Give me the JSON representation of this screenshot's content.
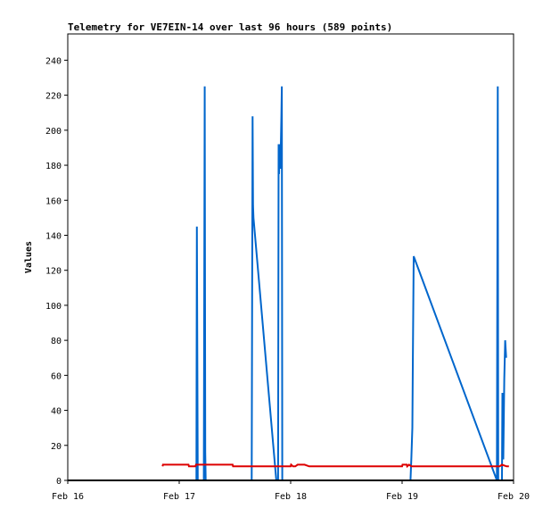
{
  "chart_data": {
    "type": "line",
    "title": "Telemetry for VE7EIN-14 over last 96 hours (589 points)",
    "xlabel": "",
    "ylabel": "Values",
    "x_ticks": [
      "Feb 16",
      "Feb 17",
      "Feb 18",
      "Feb 19",
      "Feb 20"
    ],
    "x_range_hours": [
      0,
      96
    ],
    "ylim": [
      0,
      255
    ],
    "y_ticks": [
      0,
      20,
      40,
      60,
      80,
      100,
      120,
      140,
      160,
      180,
      200,
      220,
      240
    ],
    "grid": false,
    "legend": "none",
    "series": [
      {
        "color": "#0066cc",
        "points": [
          [
            18.2,
            0
          ],
          [
            27.7,
            0
          ],
          [
            27.8,
            145
          ],
          [
            27.9,
            72
          ],
          [
            28.0,
            0
          ],
          [
            29.3,
            0
          ],
          [
            29.4,
            112
          ],
          [
            29.5,
            225
          ],
          [
            29.6,
            16
          ],
          [
            29.7,
            0
          ],
          [
            39.6,
            0
          ],
          [
            39.7,
            104
          ],
          [
            39.8,
            208
          ],
          [
            39.9,
            157
          ],
          [
            40.0,
            150
          ],
          [
            44.9,
            0
          ],
          [
            45.3,
            0
          ],
          [
            45.4,
            192
          ],
          [
            45.5,
            175
          ],
          [
            45.6,
            192
          ],
          [
            45.8,
            178
          ],
          [
            46.0,
            208
          ],
          [
            46.1,
            225
          ],
          [
            46.2,
            0
          ],
          [
            73.8,
            0
          ],
          [
            74.0,
            13
          ],
          [
            74.2,
            30
          ],
          [
            74.3,
            65
          ],
          [
            74.5,
            128
          ],
          [
            92.4,
            0
          ],
          [
            92.6,
            225
          ],
          [
            92.7,
            0
          ],
          [
            93.5,
            0
          ],
          [
            93.6,
            50
          ],
          [
            93.8,
            12
          ],
          [
            94.0,
            58
          ],
          [
            94.2,
            80
          ],
          [
            94.4,
            70
          ]
        ]
      },
      {
        "color": "#dd0000",
        "points": [
          [
            20.4,
            8
          ],
          [
            20.5,
            9
          ],
          [
            26.0,
            9
          ],
          [
            26.1,
            8
          ],
          [
            27.5,
            8
          ],
          [
            27.6,
            9
          ],
          [
            35.5,
            9
          ],
          [
            35.6,
            8
          ],
          [
            48.0,
            8
          ],
          [
            48.1,
            9
          ],
          [
            48.5,
            8
          ],
          [
            49.0,
            8
          ],
          [
            49.5,
            9
          ],
          [
            50.5,
            9
          ],
          [
            51.0,
            9
          ],
          [
            52.0,
            8
          ],
          [
            72.0,
            8
          ],
          [
            72.1,
            9
          ],
          [
            73.0,
            9
          ],
          [
            73.1,
            8
          ],
          [
            73.5,
            9
          ],
          [
            74.0,
            8
          ],
          [
            92.0,
            8
          ],
          [
            93.0,
            8
          ],
          [
            93.5,
            9
          ],
          [
            94.5,
            8
          ],
          [
            95.0,
            8
          ]
        ]
      },
      {
        "color": "#000000",
        "points": [
          [
            0,
            0
          ],
          [
            96,
            0
          ]
        ]
      }
    ]
  }
}
